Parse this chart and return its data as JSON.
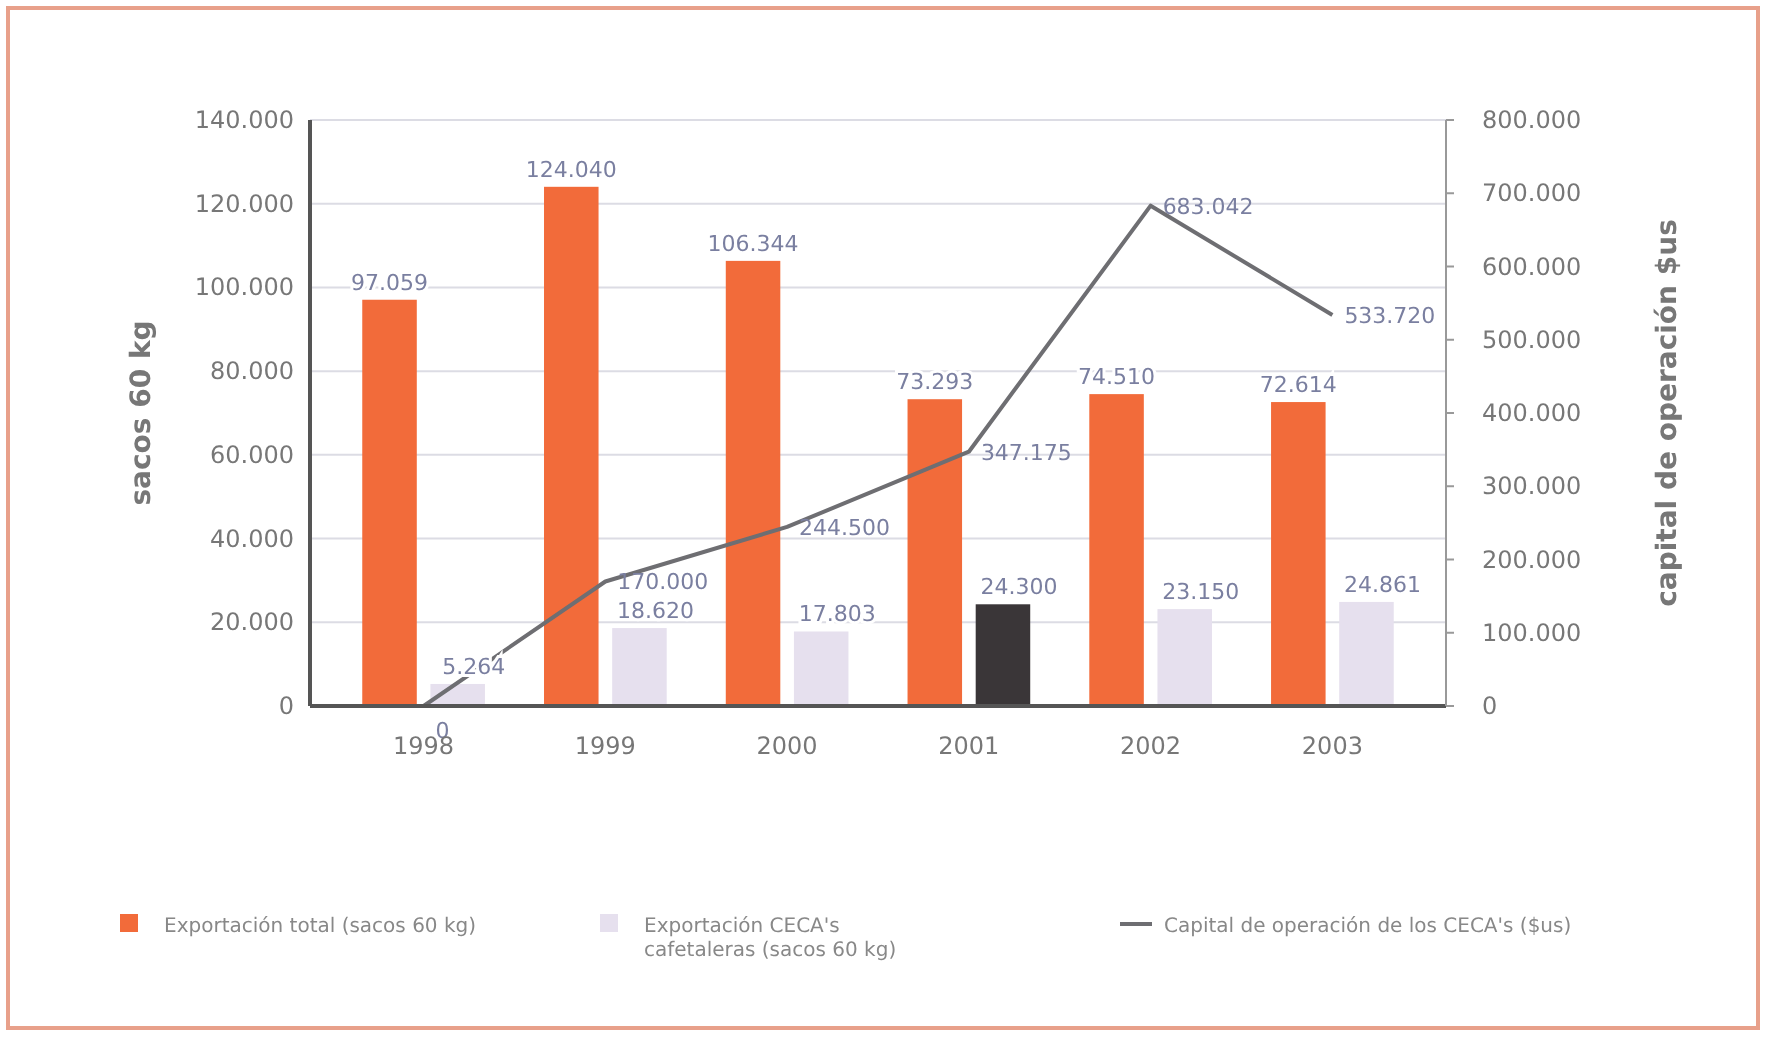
{
  "chart_data": {
    "type": "bar",
    "categories": [
      "1998",
      "1999",
      "2000",
      "2001",
      "2002",
      "2003"
    ],
    "ylabel": "sacos 60 kg",
    "y2label": "capital de operación $us",
    "ylim": [
      0,
      140000
    ],
    "yticks": [
      {
        "value": 0,
        "label": "0"
      },
      {
        "value": 20000,
        "label": "20.000"
      },
      {
        "value": 40000,
        "label": "40.000"
      },
      {
        "value": 60000,
        "label": "60.000"
      },
      {
        "value": 80000,
        "label": "80.000"
      },
      {
        "value": 100000,
        "label": "100.000"
      },
      {
        "value": 120000,
        "label": "120.000"
      },
      {
        "value": 140000,
        "label": "140.000"
      }
    ],
    "y2lim": [
      0,
      800000
    ],
    "y2ticks": [
      {
        "value": 0,
        "label": "0"
      },
      {
        "value": 100000,
        "label": "100.000"
      },
      {
        "value": 200000,
        "label": "200.000"
      },
      {
        "value": 300000,
        "label": "300.000"
      },
      {
        "value": 400000,
        "label": "400.000"
      },
      {
        "value": 500000,
        "label": "500.000"
      },
      {
        "value": 600000,
        "label": "600.000"
      },
      {
        "value": 700000,
        "label": "700.000"
      },
      {
        "value": 800000,
        "label": "800.000"
      }
    ],
    "grid": "y",
    "legend": "bottom",
    "marker": "none",
    "series": [
      {
        "name": "Exportación total (sacos 60 kg)",
        "color": "#f26b3a",
        "values": [
          97059,
          124040,
          106344,
          73293,
          74510,
          72614
        ],
        "value_labels": [
          "97.059",
          "124.040",
          "106.344",
          "73.293",
          "74.510",
          "72.614"
        ]
      },
      {
        "name": "Exportación CECA's cafetaleras (sacos 60 kg)",
        "color": "#e6e0ee",
        "colors": [
          "#e6e0ee",
          "#e6e0ee",
          "#e6e0ee",
          "#3a3638",
          "#e6e0ee",
          "#e6e0ee"
        ],
        "values": [
          5264,
          18620,
          17803,
          24300,
          23150,
          24861
        ],
        "value_labels": [
          "5.264",
          "18.620",
          "17.803",
          "24.300",
          "23.150",
          "24.861"
        ]
      },
      {
        "name": "Capital de operación de los CECA's ($us)",
        "type": "line",
        "axis": "y2",
        "color": "#6e6e72",
        "values": [
          0,
          170000,
          244500,
          347175,
          683042,
          533720
        ],
        "value_labels": [
          "0",
          "170.000",
          "244.500",
          "347.175",
          "683.042",
          "533.720"
        ]
      }
    ]
  }
}
